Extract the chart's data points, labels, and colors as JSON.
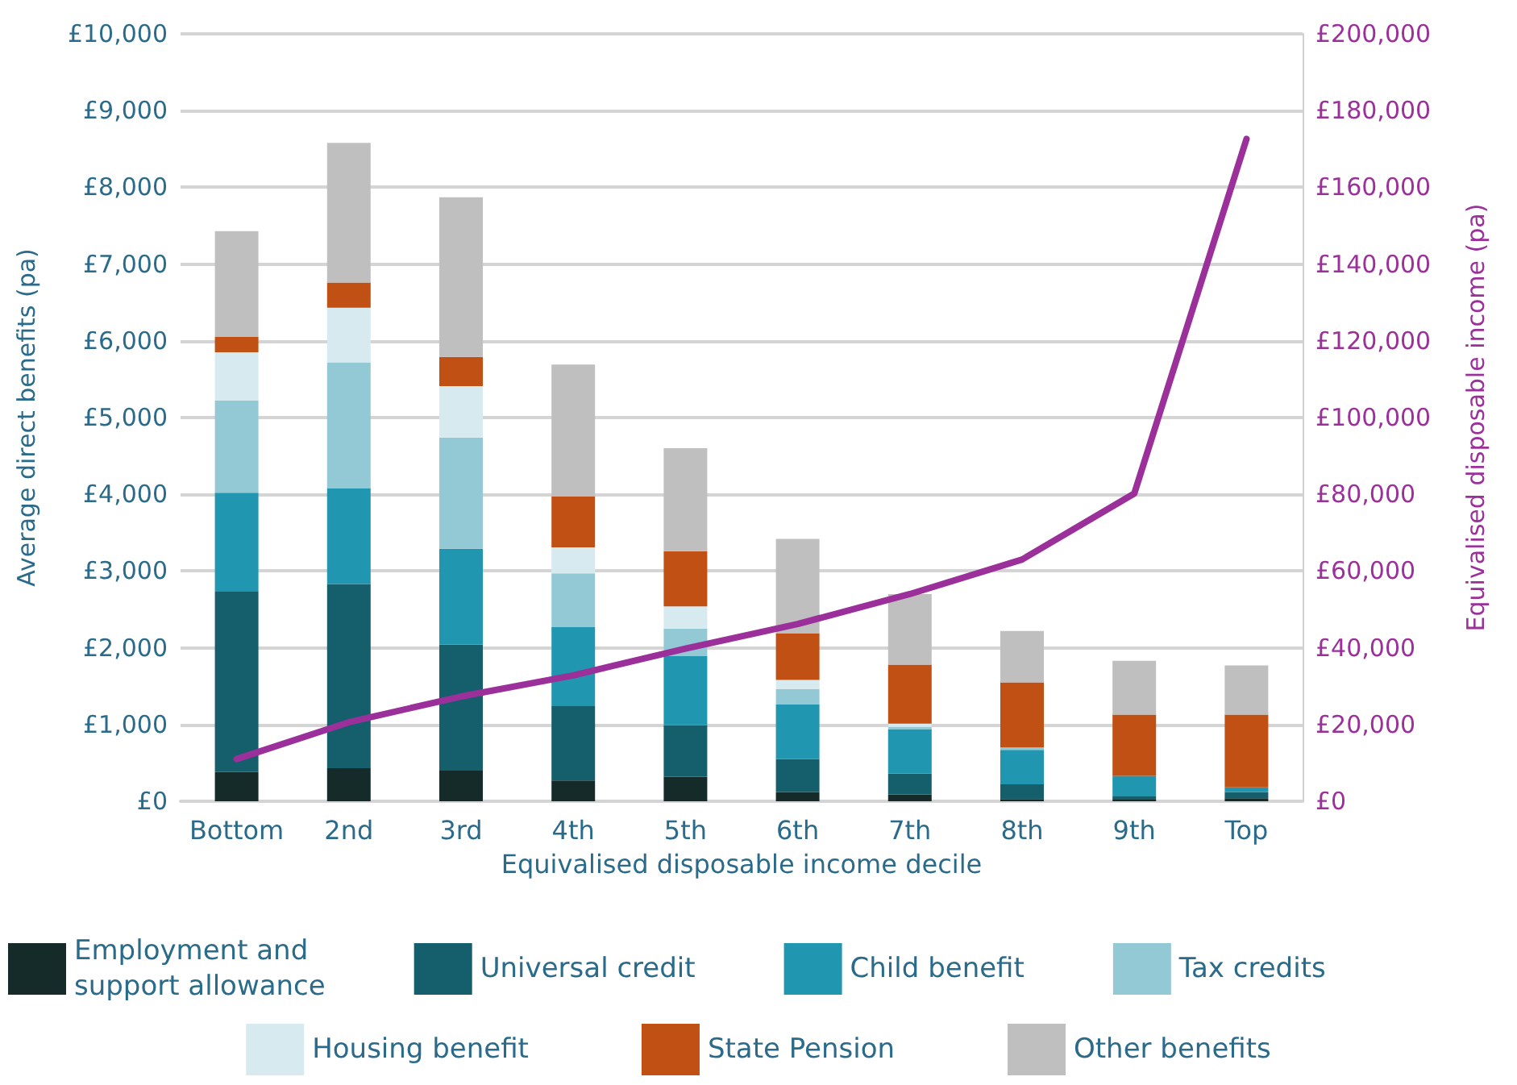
{
  "chart_data": {
    "type": "bar",
    "stacked": true,
    "xlabel": "Equivalised disposable income decile",
    "ylabel": "Average direct benefits (pa)",
    "y2label": "Equivalised disposable income (pa)",
    "categories": [
      "Bottom",
      "2nd",
      "3rd",
      "4th",
      "5th",
      "6th",
      "7th",
      "8th",
      "9th",
      "Top"
    ],
    "series": [
      {
        "name": "Employment and support allowance",
        "color": "#142b2a",
        "values": [
          380,
          430,
          400,
          270,
          320,
          120,
          90,
          30,
          20,
          40
        ]
      },
      {
        "name": "Universal credit",
        "color": "#155e6b",
        "values": [
          2350,
          2400,
          1640,
          970,
          670,
          430,
          270,
          190,
          50,
          80
        ]
      },
      {
        "name": "Child benefit",
        "color": "#2196b0",
        "values": [
          1290,
          1250,
          1250,
          1030,
          900,
          710,
          580,
          450,
          260,
          60
        ]
      },
      {
        "name": "Tax credits",
        "color": "#92c9d5",
        "values": [
          1200,
          1640,
          1450,
          700,
          360,
          200,
          30,
          30,
          0,
          0
        ]
      },
      {
        "name": "Housing benefit",
        "color": "#d6eaf0",
        "values": [
          630,
          710,
          670,
          340,
          290,
          120,
          40,
          null,
          0,
          0
        ]
      },
      {
        "name": "State Pension",
        "color": "#c05014",
        "values": [
          200,
          330,
          380,
          660,
          720,
          610,
          770,
          850,
          800,
          950
        ]
      },
      {
        "name": "Other benefits",
        "color": "#bfbfbf",
        "values": [
          1380,
          1820,
          2080,
          1720,
          1340,
          1230,
          920,
          670,
          700,
          640
        ]
      },
      {
        "type": "line",
        "axis": "y2",
        "color": "#9b309a",
        "values": [
          11000,
          20600,
          27300,
          32800,
          39800,
          46200,
          54000,
          63000,
          80200,
          172600
        ]
      }
    ],
    "ylim": [
      0,
      10000
    ],
    "yticks": [
      {
        "value": 0,
        "label": "£0"
      },
      {
        "value": 1000,
        "label": "£1,000"
      },
      {
        "value": 2000,
        "label": "£2,000"
      },
      {
        "value": 3000,
        "label": "£3,000"
      },
      {
        "value": 4000,
        "label": "£4,000"
      },
      {
        "value": 5000,
        "label": "£5,000"
      },
      {
        "value": 6000,
        "label": "£6,000"
      },
      {
        "value": 7000,
        "label": "£7,000"
      },
      {
        "value": 8000,
        "label": "£8,000"
      },
      {
        "value": 9000,
        "label": "£9,000"
      },
      {
        "value": 10000,
        "label": "£10,000"
      }
    ],
    "y2lim": [
      0,
      200000
    ],
    "y2ticks": [
      {
        "value": 0,
        "label": "£0"
      },
      {
        "value": 20000,
        "label": "£20,000"
      },
      {
        "value": 40000,
        "label": "£40,000"
      },
      {
        "value": 60000,
        "label": "£60,000"
      },
      {
        "value": 80000,
        "label": "£80,000"
      },
      {
        "value": 100000,
        "label": "£100,000"
      },
      {
        "value": 120000,
        "label": "£120,000"
      },
      {
        "value": 140000,
        "label": "£140,000"
      },
      {
        "value": 160000,
        "label": "£160,000"
      },
      {
        "value": 180000,
        "label": "£180,000"
      },
      {
        "value": 200000,
        "label": "£200,000"
      }
    ],
    "grid": "y",
    "legend": "bottom",
    "marker": "none"
  }
}
